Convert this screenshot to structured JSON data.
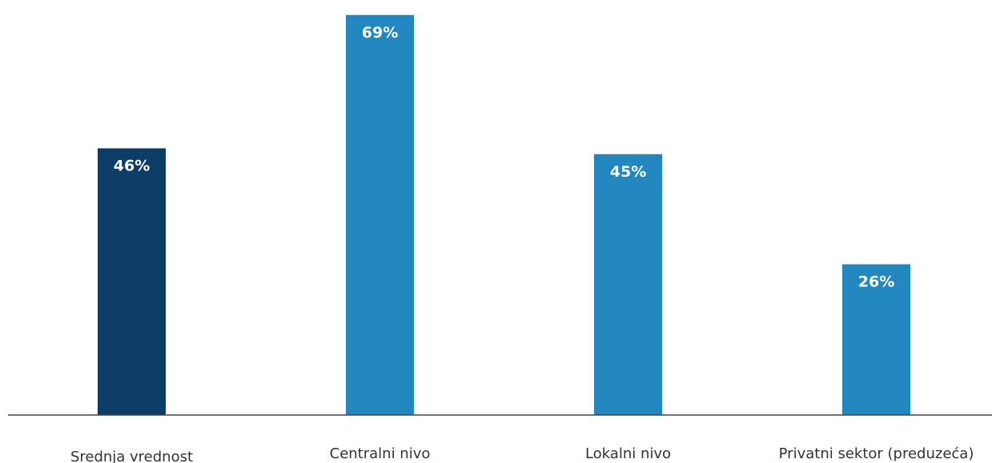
{
  "chart_data": {
    "type": "bar",
    "categories": [
      "Srednja vrednost",
      "Centralni nivo",
      "Lokalni nivo",
      "Privatni sektor (preduzeća)"
    ],
    "values": [
      46,
      69,
      45,
      26
    ],
    "value_labels": [
      "46%",
      "69%",
      "45%",
      "26%"
    ],
    "colors": [
      "#0c3d69",
      "#2387bf",
      "#2387bf",
      "#2387bf"
    ],
    "ylim": [
      0,
      100
    ],
    "grid": false,
    "legend": "none",
    "xlabel": "",
    "ylabel": ""
  }
}
